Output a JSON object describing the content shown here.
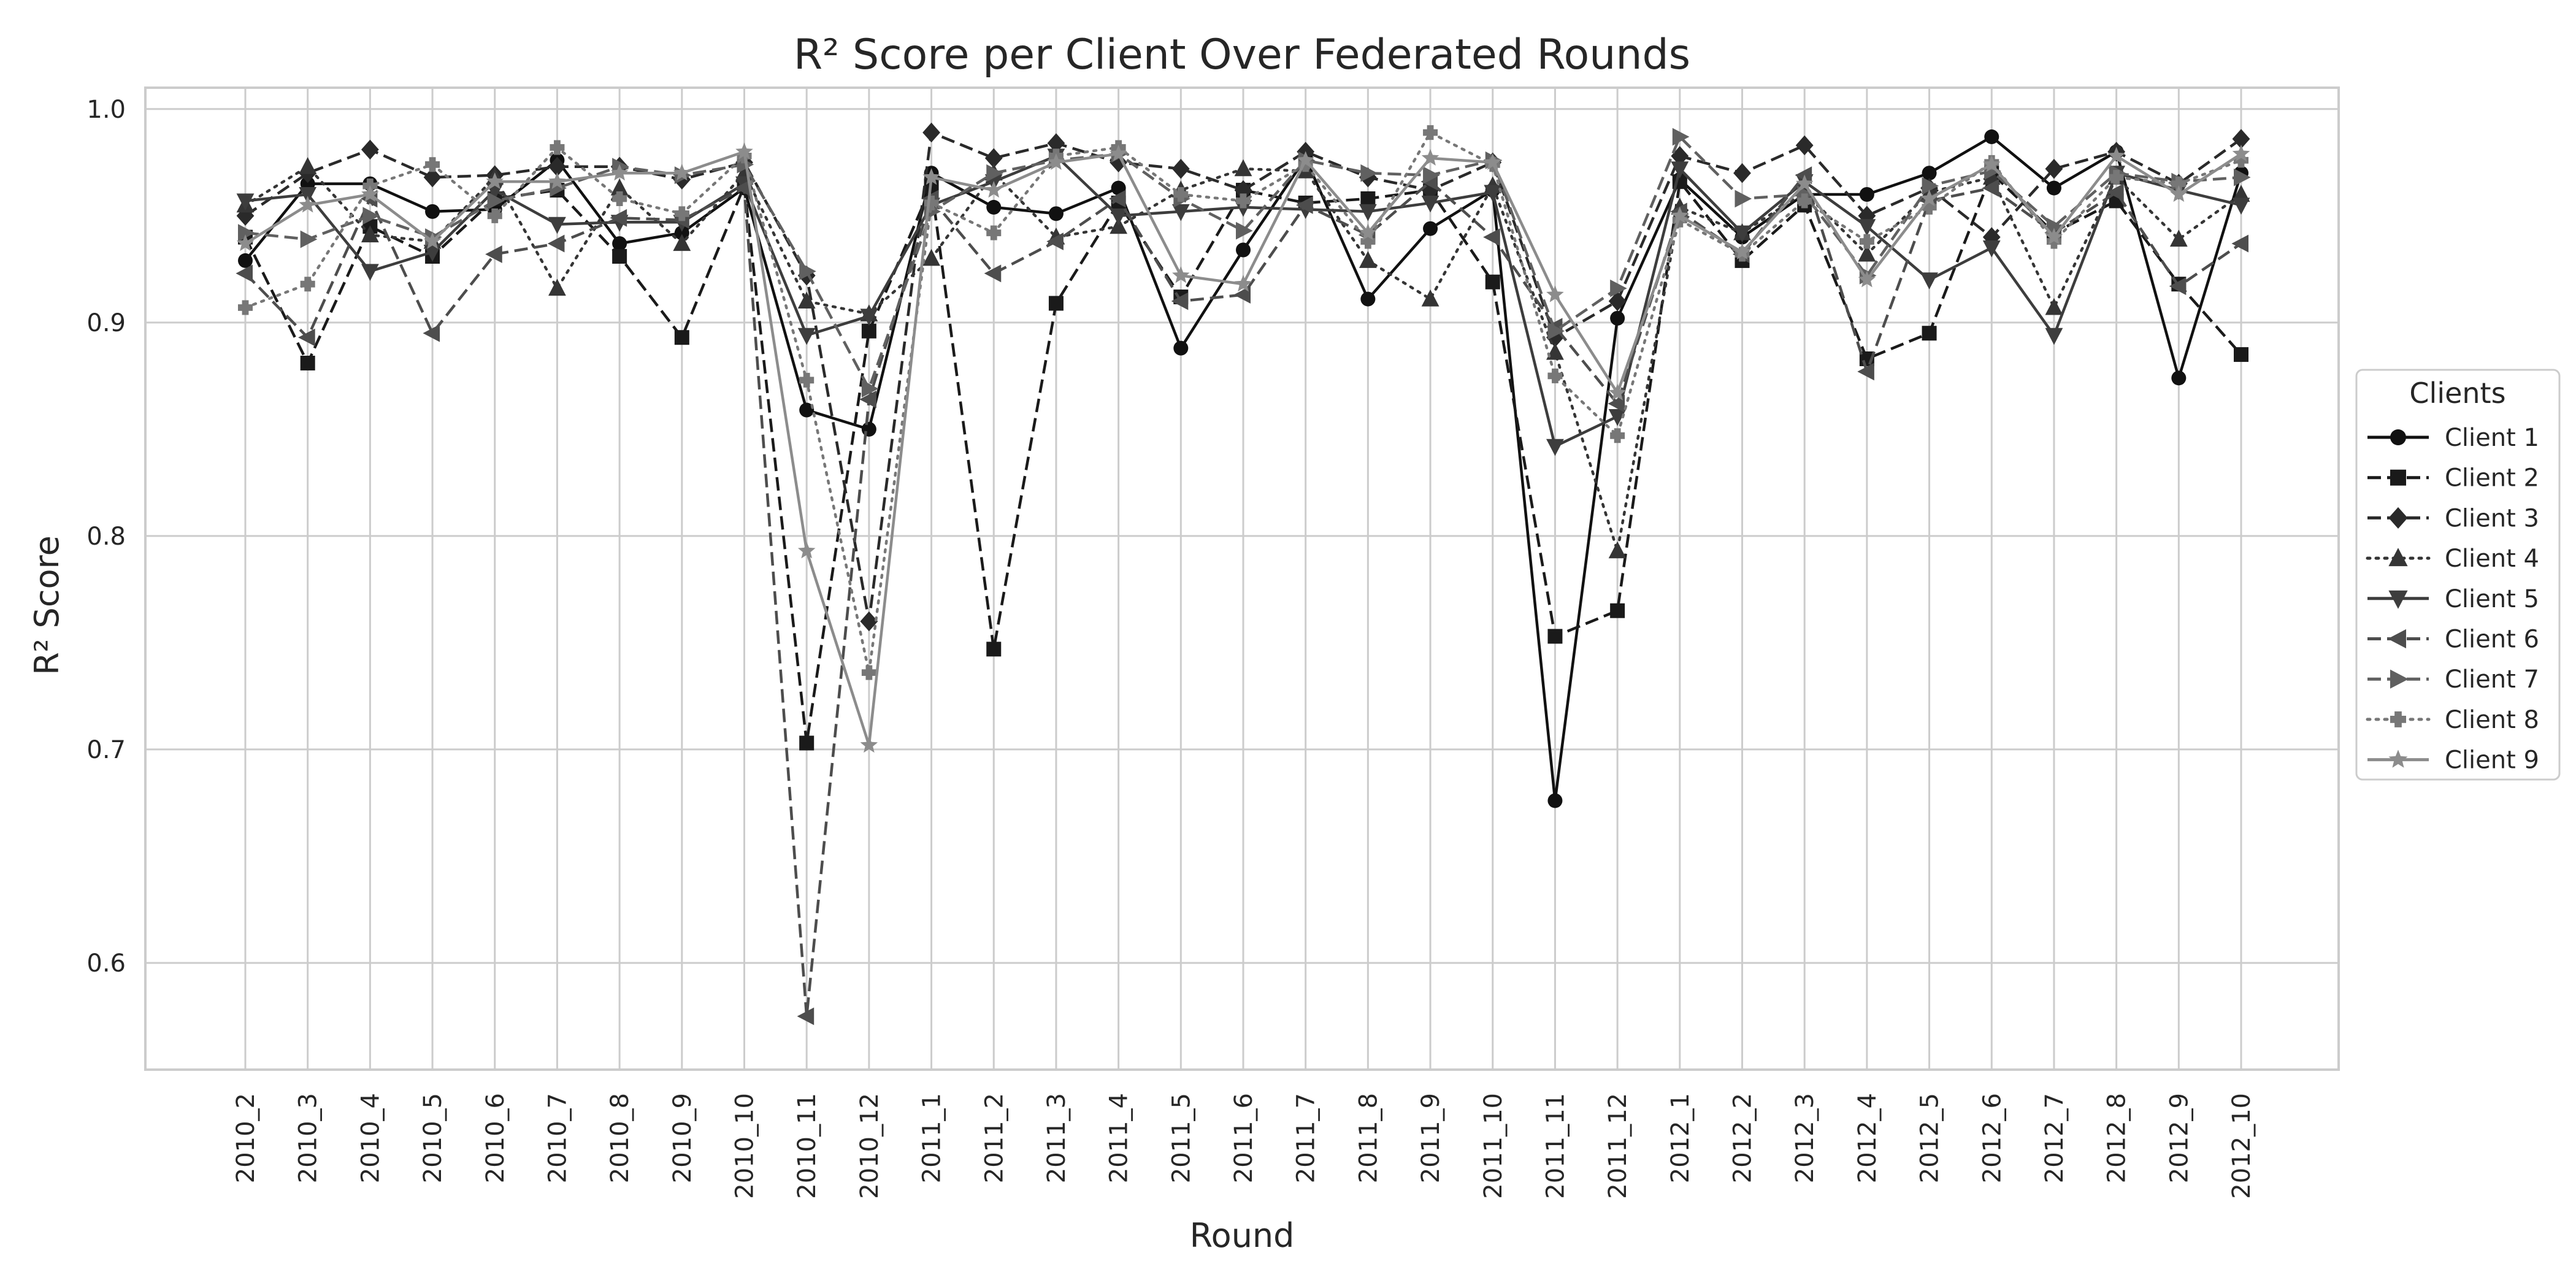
{
  "chart_data": {
    "type": "line",
    "title": "R² Score per Client Over Federated Rounds",
    "xlabel": "Round",
    "ylabel": "R² Score",
    "ylim": [
      0.55,
      1.01
    ],
    "yticks": [
      "0.6",
      "0.7",
      "0.8",
      "0.9",
      "1.0"
    ],
    "grid": true,
    "legend": {
      "title": "Clients",
      "placement": "right, outside plot"
    },
    "categories": [
      "2010_2",
      "2010_3",
      "2010_4",
      "2010_5",
      "2010_6",
      "2010_7",
      "2010_8",
      "2010_9",
      "2010_10",
      "2010_11",
      "2010_12",
      "2011_1",
      "2011_2",
      "2011_3",
      "2011_4",
      "2011_5",
      "2011_6",
      "2011_7",
      "2011_8",
      "2011_9",
      "2011_10",
      "2011_11",
      "2011_12",
      "2012_1",
      "2012_2",
      "2012_3",
      "2012_4",
      "2012_5",
      "2012_6",
      "2012_7",
      "2012_8",
      "2012_9",
      "2012_10"
    ],
    "series": [
      {
        "name": "Client 1",
        "color": "#111111",
        "dash": "solid",
        "marker": "circle",
        "values": [
          0.929,
          0.965,
          0.965,
          0.952,
          0.953,
          0.976,
          0.937,
          0.942,
          0.963,
          0.859,
          0.85,
          0.97,
          0.954,
          0.951,
          0.963,
          0.888,
          0.934,
          0.977,
          0.911,
          0.944,
          0.962,
          0.676,
          0.902,
          0.967,
          0.94,
          0.96,
          0.96,
          0.97,
          0.987,
          0.963,
          0.98,
          0.874,
          0.97
        ]
      },
      {
        "name": "Client 2",
        "color": "#1a1a1a",
        "dash": "dashed",
        "marker": "square",
        "values": [
          0.94,
          0.881,
          0.945,
          0.931,
          0.958,
          0.962,
          0.931,
          0.893,
          0.964,
          0.703,
          0.896,
          0.964,
          0.747,
          0.909,
          0.956,
          0.912,
          0.962,
          0.956,
          0.958,
          0.962,
          0.919,
          0.753,
          0.765,
          0.966,
          0.929,
          0.955,
          0.883,
          0.895,
          0.97,
          0.942,
          0.957,
          0.918,
          0.885
        ]
      },
      {
        "name": "Client 3",
        "color": "#2a2a2a",
        "dash": "dashed",
        "marker": "diamond",
        "values": [
          0.95,
          0.97,
          0.981,
          0.968,
          0.969,
          0.973,
          0.973,
          0.967,
          0.975,
          0.922,
          0.76,
          0.989,
          0.977,
          0.984,
          0.975,
          0.972,
          0.962,
          0.98,
          0.968,
          0.962,
          0.975,
          0.893,
          0.91,
          0.978,
          0.97,
          0.983,
          0.95,
          0.963,
          0.94,
          0.972,
          0.98,
          0.965,
          0.986
        ]
      },
      {
        "name": "Client 4",
        "color": "#353535",
        "dash": "dotted",
        "marker": "triangle-up",
        "values": [
          0.955,
          0.973,
          0.941,
          0.938,
          0.968,
          0.916,
          0.963,
          0.937,
          0.97,
          0.91,
          0.904,
          0.93,
          0.97,
          0.94,
          0.945,
          0.962,
          0.972,
          0.971,
          0.929,
          0.911,
          0.964,
          0.886,
          0.793,
          0.954,
          0.942,
          0.961,
          0.932,
          0.961,
          0.968,
          0.907,
          0.968,
          0.939,
          0.96
        ]
      },
      {
        "name": "Client 5",
        "color": "#3d3d3d",
        "dash": "solid",
        "marker": "triangle-down",
        "values": [
          0.957,
          0.96,
          0.924,
          0.933,
          0.962,
          0.946,
          0.947,
          0.947,
          0.965,
          0.894,
          0.903,
          0.955,
          0.966,
          0.978,
          0.95,
          0.952,
          0.954,
          0.953,
          0.952,
          0.956,
          0.961,
          0.842,
          0.856,
          0.972,
          0.942,
          0.966,
          0.945,
          0.92,
          0.935,
          0.894,
          0.97,
          0.962,
          0.955
        ]
      },
      {
        "name": "Client 6",
        "color": "#4d4d4d",
        "dash": "dashed",
        "marker": "triangle-left",
        "values": [
          0.923,
          0.893,
          0.958,
          0.895,
          0.932,
          0.937,
          0.949,
          0.948,
          0.963,
          0.575,
          0.864,
          0.958,
          0.923,
          0.938,
          0.958,
          0.91,
          0.913,
          0.955,
          0.941,
          0.966,
          0.94,
          0.898,
          0.862,
          0.952,
          0.932,
          0.969,
          0.877,
          0.957,
          0.963,
          0.942,
          0.961,
          0.917,
          0.937
        ]
      },
      {
        "name": "Client 7",
        "color": "#606060",
        "dash": "dashed",
        "marker": "triangle-right",
        "values": [
          0.942,
          0.939,
          0.95,
          0.94,
          0.957,
          0.963,
          0.973,
          0.969,
          0.974,
          0.924,
          0.869,
          0.952,
          0.97,
          0.976,
          0.979,
          0.958,
          0.943,
          0.976,
          0.97,
          0.969,
          0.976,
          0.896,
          0.916,
          0.987,
          0.958,
          0.96,
          0.922,
          0.964,
          0.971,
          0.945,
          0.97,
          0.966,
          0.968
        ]
      },
      {
        "name": "Client 8",
        "color": "#777777",
        "dash": "dotted",
        "marker": "plus",
        "values": [
          0.907,
          0.918,
          0.964,
          0.974,
          0.95,
          0.982,
          0.958,
          0.951,
          0.978,
          0.873,
          0.736,
          0.956,
          0.942,
          0.978,
          0.982,
          0.96,
          0.957,
          0.974,
          0.938,
          0.989,
          0.974,
          0.875,
          0.847,
          0.948,
          0.932,
          0.957,
          0.938,
          0.954,
          0.975,
          0.938,
          0.968,
          0.965,
          0.976
        ]
      },
      {
        "name": "Client 9",
        "color": "#8c8c8c",
        "dash": "solid",
        "marker": "star",
        "values": [
          0.937,
          0.955,
          0.96,
          0.938,
          0.966,
          0.966,
          0.97,
          0.97,
          0.98,
          0.793,
          0.702,
          0.968,
          0.962,
          0.975,
          0.979,
          0.922,
          0.918,
          0.976,
          0.942,
          0.977,
          0.975,
          0.913,
          0.867,
          0.95,
          0.933,
          0.965,
          0.92,
          0.958,
          0.974,
          0.94,
          0.978,
          0.96,
          0.979
        ]
      }
    ]
  }
}
